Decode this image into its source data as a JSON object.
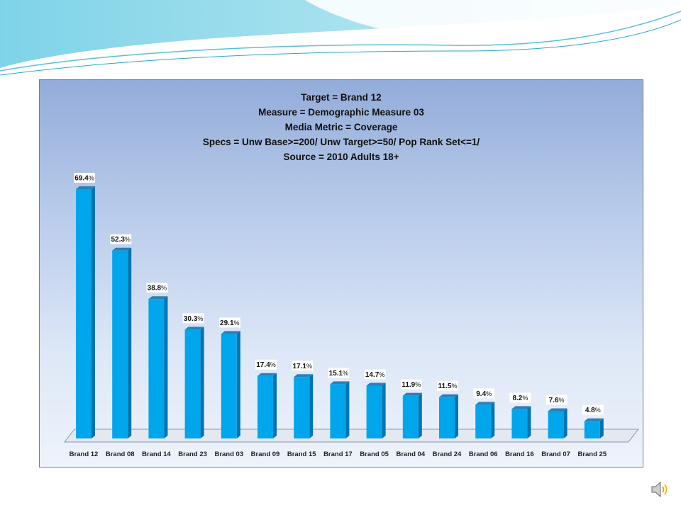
{
  "chart_data": {
    "type": "bar",
    "title_lines": [
      "Target = Brand 12",
      "Measure = Demographic Measure 03",
      "Media Metric = Coverage",
      "Specs = Unw Base>=200/ Unw Target>=50/ Pop Rank Set<=1/",
      "Source = 2010 Adults 18+"
    ],
    "categories": [
      "Brand 12",
      "Brand 08",
      "Brand 14",
      "Brand 23",
      "Brand 03",
      "Brand 09",
      "Brand 15",
      "Brand 17",
      "Brand 05",
      "Brand 04",
      "Brand 24",
      "Brand 06",
      "Brand 16",
      "Brand 07",
      "Brand 25"
    ],
    "values": [
      69.4,
      52.3,
      38.8,
      30.3,
      29.1,
      17.4,
      17.1,
      15.1,
      14.7,
      11.9,
      11.5,
      9.4,
      8.2,
      7.6,
      4.8
    ],
    "value_suffix": "%",
    "ylim": [
      0,
      70
    ],
    "grid": false,
    "legend": "none",
    "colors": {
      "bar_front": "#00a6ec",
      "bar_side": "#0073b0",
      "bar_top": "#2d7fb8",
      "floor": "#e4e9f1"
    }
  }
}
